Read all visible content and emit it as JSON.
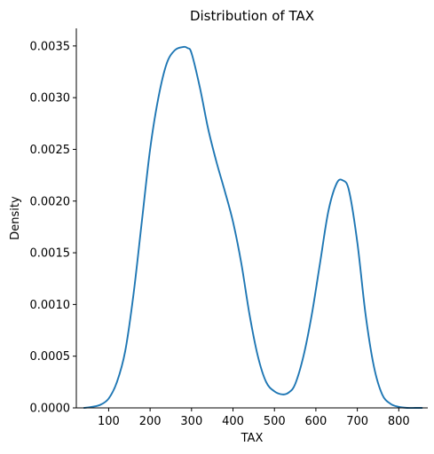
{
  "chart_data": {
    "type": "line",
    "title": "Distribution of TAX",
    "xlabel": "TAX",
    "ylabel": "Density",
    "xlim": [
      22,
      870
    ],
    "ylim": [
      0,
      0.00367
    ],
    "xticks": [
      100,
      200,
      300,
      400,
      500,
      600,
      700,
      800
    ],
    "xtick_labels": [
      "100",
      "200",
      "300",
      "400",
      "500",
      "600",
      "700",
      "800"
    ],
    "yticks": [
      0,
      0.0005,
      0.001,
      0.0015,
      0.002,
      0.0025,
      0.003,
      0.0035
    ],
    "ytick_labels": [
      "0.0000",
      "0.0005",
      "0.0010",
      "0.0015",
      "0.0020",
      "0.0025",
      "0.0030",
      "0.0035"
    ],
    "grid": false,
    "series": [
      {
        "color": "#1f77b4",
        "x": [
          41,
          60,
          80,
          100,
          120,
          140,
          160,
          180,
          200,
          220,
          240,
          260,
          280,
          290,
          300,
          320,
          340,
          360,
          380,
          400,
          420,
          440,
          460,
          480,
          500,
          520,
          535,
          550,
          570,
          590,
          610,
          630,
          650,
          665,
          680,
          700,
          720,
          740,
          760,
          780,
          800,
          820,
          840,
          856
        ],
        "y": [
          0.0,
          1e-05,
          3e-05,
          9e-05,
          0.00025,
          0.00055,
          0.0011,
          0.0018,
          0.0025,
          0.003,
          0.00333,
          0.00346,
          0.00349,
          0.00348,
          0.00343,
          0.0031,
          0.0027,
          0.00238,
          0.0021,
          0.0018,
          0.0014,
          0.0009,
          0.0005,
          0.00025,
          0.00016,
          0.00013,
          0.00015,
          0.00023,
          0.0005,
          0.0009,
          0.0014,
          0.0019,
          0.00217,
          0.0022,
          0.0021,
          0.0016,
          0.0009,
          0.0004,
          0.00013,
          4e-05,
          1e-05,
          0.0,
          0.0,
          0.0
        ]
      }
    ]
  }
}
